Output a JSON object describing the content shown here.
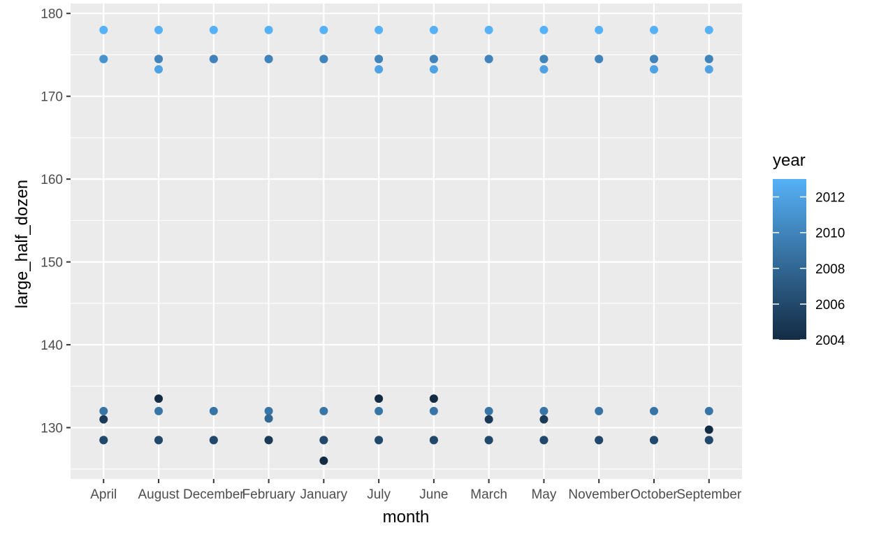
{
  "chart_data": {
    "type": "scatter",
    "title": "",
    "xlabel": "month",
    "ylabel": "large_half_dozen",
    "categories": [
      "April",
      "August",
      "December",
      "February",
      "January",
      "July",
      "June",
      "March",
      "May",
      "November",
      "October",
      "September"
    ],
    "ylim": [
      123.8,
      181.2
    ],
    "yticks": [
      130,
      140,
      150,
      160,
      170,
      180
    ],
    "grid": true,
    "legend": {
      "title": "year",
      "placement": "right",
      "type": "colorbar",
      "range": [
        2004,
        2013
      ],
      "breaks": [
        2012,
        2010,
        2008,
        2006,
        2004
      ],
      "color_low": "#132B43",
      "color_high": "#56B1F7"
    },
    "points": [
      {
        "x": "April",
        "y": 178.0,
        "year": 2013
      },
      {
        "x": "April",
        "y": 174.5,
        "year": 2012
      },
      {
        "x": "April",
        "y": 174.5,
        "year": 2011
      },
      {
        "x": "April",
        "y": 132.0,
        "year": 2009
      },
      {
        "x": "April",
        "y": 131.0,
        "year": 2005
      },
      {
        "x": "April",
        "y": 128.5,
        "year": 2008
      },
      {
        "x": "April",
        "y": 128.5,
        "year": 2006
      },
      {
        "x": "August",
        "y": 178.0,
        "year": 2013
      },
      {
        "x": "August",
        "y": 174.5,
        "year": 2011
      },
      {
        "x": "August",
        "y": 174.5,
        "year": 2010
      },
      {
        "x": "August",
        "y": 173.25,
        "year": 2012
      },
      {
        "x": "August",
        "y": 133.5,
        "year": 2004
      },
      {
        "x": "August",
        "y": 132.0,
        "year": 2009
      },
      {
        "x": "August",
        "y": 128.5,
        "year": 2008
      },
      {
        "x": "August",
        "y": 128.5,
        "year": 2006
      },
      {
        "x": "December",
        "y": 178.0,
        "year": 2013
      },
      {
        "x": "December",
        "y": 174.5,
        "year": 2011
      },
      {
        "x": "December",
        "y": 174.5,
        "year": 2010
      },
      {
        "x": "December",
        "y": 132.0,
        "year": 2009
      },
      {
        "x": "December",
        "y": 128.5,
        "year": 2008
      },
      {
        "x": "December",
        "y": 128.5,
        "year": 2006
      },
      {
        "x": "February",
        "y": 178.0,
        "year": 2013
      },
      {
        "x": "February",
        "y": 174.5,
        "year": 2011
      },
      {
        "x": "February",
        "y": 174.5,
        "year": 2010
      },
      {
        "x": "February",
        "y": 132.0,
        "year": 2009
      },
      {
        "x": "February",
        "y": 131.1,
        "year": 2008
      },
      {
        "x": "February",
        "y": 128.5,
        "year": 2007
      },
      {
        "x": "February",
        "y": 128.5,
        "year": 2005
      },
      {
        "x": "January",
        "y": 178.0,
        "year": 2013
      },
      {
        "x": "January",
        "y": 174.5,
        "year": 2011
      },
      {
        "x": "January",
        "y": 174.5,
        "year": 2010
      },
      {
        "x": "January",
        "y": 132.0,
        "year": 2009
      },
      {
        "x": "January",
        "y": 128.5,
        "year": 2008
      },
      {
        "x": "January",
        "y": 128.5,
        "year": 2006
      },
      {
        "x": "January",
        "y": 126.0,
        "year": 2004
      },
      {
        "x": "July",
        "y": 178.0,
        "year": 2013
      },
      {
        "x": "July",
        "y": 174.5,
        "year": 2011
      },
      {
        "x": "July",
        "y": 174.5,
        "year": 2010
      },
      {
        "x": "July",
        "y": 173.25,
        "year": 2012
      },
      {
        "x": "July",
        "y": 133.5,
        "year": 2004
      },
      {
        "x": "July",
        "y": 132.0,
        "year": 2009
      },
      {
        "x": "July",
        "y": 128.5,
        "year": 2008
      },
      {
        "x": "July",
        "y": 128.5,
        "year": 2006
      },
      {
        "x": "June",
        "y": 178.0,
        "year": 2013
      },
      {
        "x": "June",
        "y": 174.5,
        "year": 2011
      },
      {
        "x": "June",
        "y": 174.5,
        "year": 2010
      },
      {
        "x": "June",
        "y": 173.25,
        "year": 2012
      },
      {
        "x": "June",
        "y": 133.5,
        "year": 2004
      },
      {
        "x": "June",
        "y": 132.0,
        "year": 2009
      },
      {
        "x": "June",
        "y": 128.5,
        "year": 2008
      },
      {
        "x": "June",
        "y": 128.5,
        "year": 2006
      },
      {
        "x": "March",
        "y": 178.0,
        "year": 2013
      },
      {
        "x": "March",
        "y": 174.5,
        "year": 2011
      },
      {
        "x": "March",
        "y": 174.5,
        "year": 2010
      },
      {
        "x": "March",
        "y": 132.0,
        "year": 2009
      },
      {
        "x": "March",
        "y": 131.0,
        "year": 2005
      },
      {
        "x": "March",
        "y": 128.5,
        "year": 2008
      },
      {
        "x": "March",
        "y": 128.5,
        "year": 2006
      },
      {
        "x": "May",
        "y": 178.0,
        "year": 2013
      },
      {
        "x": "May",
        "y": 174.5,
        "year": 2011
      },
      {
        "x": "May",
        "y": 174.5,
        "year": 2010
      },
      {
        "x": "May",
        "y": 173.25,
        "year": 2012
      },
      {
        "x": "May",
        "y": 132.0,
        "year": 2009
      },
      {
        "x": "May",
        "y": 131.0,
        "year": 2005
      },
      {
        "x": "May",
        "y": 128.5,
        "year": 2008
      },
      {
        "x": "May",
        "y": 128.5,
        "year": 2006
      },
      {
        "x": "November",
        "y": 178.0,
        "year": 2013
      },
      {
        "x": "November",
        "y": 174.5,
        "year": 2011
      },
      {
        "x": "November",
        "y": 174.5,
        "year": 2010
      },
      {
        "x": "November",
        "y": 132.0,
        "year": 2009
      },
      {
        "x": "November",
        "y": 128.5,
        "year": 2008
      },
      {
        "x": "November",
        "y": 128.5,
        "year": 2006
      },
      {
        "x": "October",
        "y": 178.0,
        "year": 2013
      },
      {
        "x": "October",
        "y": 174.5,
        "year": 2011
      },
      {
        "x": "October",
        "y": 174.5,
        "year": 2010
      },
      {
        "x": "October",
        "y": 173.25,
        "year": 2012
      },
      {
        "x": "October",
        "y": 132.0,
        "year": 2009
      },
      {
        "x": "October",
        "y": 128.5,
        "year": 2008
      },
      {
        "x": "October",
        "y": 128.5,
        "year": 2006
      },
      {
        "x": "September",
        "y": 178.0,
        "year": 2013
      },
      {
        "x": "September",
        "y": 174.5,
        "year": 2011
      },
      {
        "x": "September",
        "y": 174.5,
        "year": 2010
      },
      {
        "x": "September",
        "y": 173.25,
        "year": 2012
      },
      {
        "x": "September",
        "y": 132.0,
        "year": 2009
      },
      {
        "x": "September",
        "y": 129.75,
        "year": 2004
      },
      {
        "x": "September",
        "y": 128.5,
        "year": 2008
      },
      {
        "x": "September",
        "y": 128.5,
        "year": 2006
      }
    ]
  }
}
